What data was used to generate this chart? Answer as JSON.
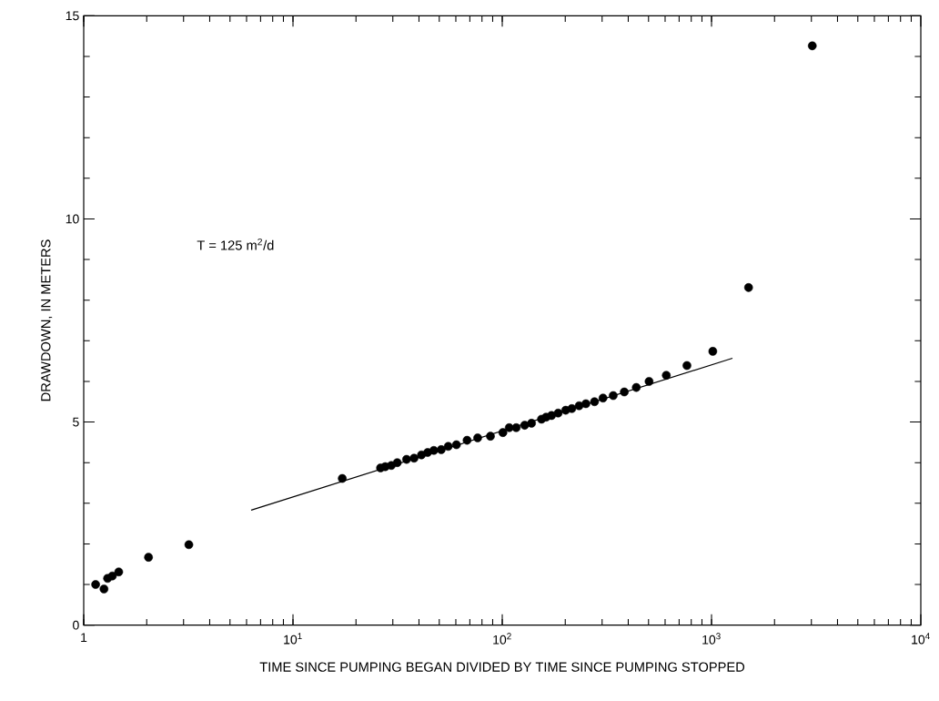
{
  "chart_data": {
    "type": "scatter",
    "xlabel": "TIME SINCE PUMPING BEGAN DIVIDED BY TIME SINCE PUMPING STOPPED",
    "ylabel": "DRAWDOWN,  IN METERS",
    "log": "x",
    "xlim": [
      1,
      10000
    ],
    "ylim": [
      0,
      15
    ],
    "xticks": [
      1,
      {
        "value": 10,
        "label": "10$^{1}$"
      },
      {
        "value": 100,
        "label": "10$^{2}$"
      },
      {
        "value": 1000,
        "label": "10$^{3}$"
      },
      {
        "value": 10000,
        "label": "10$^{4}$"
      }
    ],
    "yticks": [
      0,
      5,
      10,
      15
    ],
    "annotations": [
      "T = 125 m$^{2}$/d"
    ],
    "series": [
      {
        "marker": "circle",
        "color": "#000000",
        "x": [
          1.14,
          1.25,
          1.3,
          1.37,
          1.47,
          2.04,
          3.18,
          17.2,
          26.2,
          27.6,
          29.5,
          31.5,
          34.9,
          37.9,
          41.1,
          44.0,
          47.1,
          51.1,
          55.2,
          60.4,
          67.9,
          76.3,
          87.8,
          100.7,
          108,
          116.6,
          128,
          138,
          154,
          162,
          172,
          185,
          201,
          215,
          233,
          251,
          276,
          303,
          339,
          383,
          437,
          503,
          608,
          763,
          1014,
          1503,
          3030
        ],
        "values": [
          1.0,
          0.89,
          1.15,
          1.21,
          1.31,
          1.67,
          1.98,
          3.61,
          3.87,
          3.9,
          3.93,
          4.0,
          4.08,
          4.11,
          4.19,
          4.25,
          4.3,
          4.32,
          4.4,
          4.44,
          4.55,
          4.61,
          4.65,
          4.74,
          4.86,
          4.86,
          4.92,
          4.97,
          5.07,
          5.12,
          5.16,
          5.22,
          5.29,
          5.33,
          5.4,
          5.45,
          5.5,
          5.59,
          5.65,
          5.74,
          5.85,
          6.0,
          6.15,
          6.39,
          6.74,
          8.31,
          14.26
        ]
      },
      {
        "type": "line",
        "marker": "none",
        "line_style": "solid",
        "color": "#000000",
        "x": [
          6.31,
          1259
        ],
        "values": [
          2.83,
          6.57
        ]
      }
    ]
  }
}
